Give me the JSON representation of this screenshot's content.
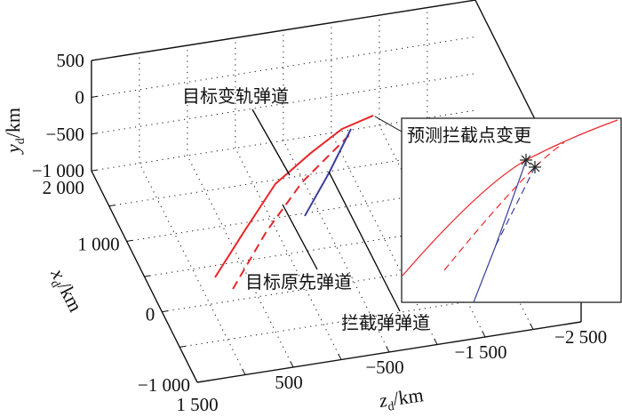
{
  "chart_data": {
    "type": "line3d",
    "axes": {
      "x": {
        "label": "x",
        "sub": "d",
        "unit": "/km",
        "range": [
          -1000,
          2000
        ],
        "ticks": [
          -1000,
          0,
          1000,
          2000
        ],
        "tick_labels": [
          "−1 000",
          "0",
          "1 000",
          "2 000"
        ]
      },
      "y": {
        "label": "y",
        "sub": "d",
        "unit": "/km",
        "range": [
          -1000,
          500
        ],
        "ticks": [
          -1000,
          -500,
          0,
          500
        ],
        "tick_labels": [
          "−1 000",
          "−500",
          "0",
          "500"
        ]
      },
      "z": {
        "label": "z",
        "sub": "d",
        "unit": "/km",
        "range": [
          -2500,
          1500
        ],
        "ticks": [
          1500,
          500,
          -500,
          -1500,
          -2500
        ],
        "tick_labels": [
          "1 500",
          "500",
          "−500",
          "−1 500",
          "−2 500"
        ]
      }
    },
    "grid": true,
    "series": [
      {
        "id": "target-maneuver",
        "color": "#e8262a",
        "dash": false,
        "points": [
          [
            343,
            -1000,
            821
          ],
          [
            600,
            -700,
            421
          ],
          [
            916,
            -450,
            -19
          ],
          [
            1056,
            -250,
            -441
          ],
          [
            1181,
            -120,
            -811
          ],
          [
            1234,
            -60,
            -1155
          ]
        ]
      },
      {
        "id": "target-original",
        "color": "#e8262a",
        "dash": true,
        "points": [
          [
            154,
            -1000,
            705
          ],
          [
            601,
            -750,
            189
          ],
          [
            911,
            -480,
            -295
          ],
          [
            1230,
            -250,
            -922
          ]
        ]
      },
      {
        "id": "interceptor",
        "color": "#3a3f9a",
        "dash": false,
        "points": [
          [
            964,
            -1000,
            -342
          ],
          [
            1088,
            -600,
            -638
          ],
          [
            1288,
            -250,
            -943
          ]
        ]
      }
    ],
    "annotations": [
      {
        "text": "目标变轨弹道"
      },
      {
        "text": "目标原先弹道"
      },
      {
        "text": "拦截弹弹道"
      }
    ],
    "inset": {
      "title": "预测拦截点变更",
      "marker": "asterisk"
    }
  }
}
